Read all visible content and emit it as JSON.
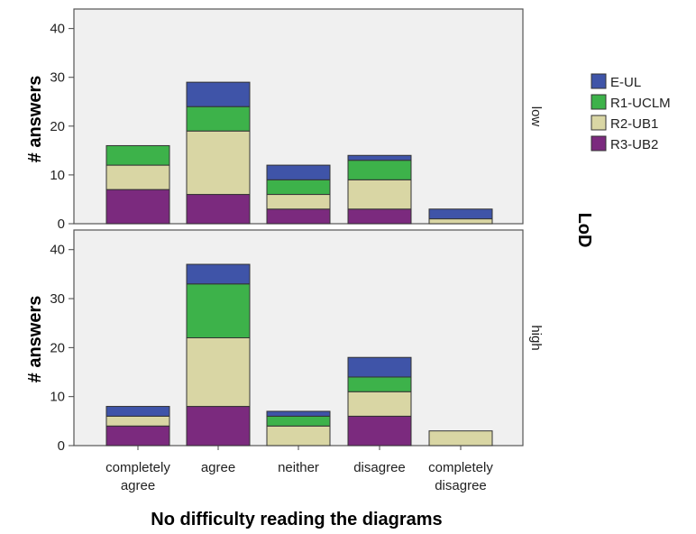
{
  "chart_data": {
    "type": "bar",
    "stacked": true,
    "xlabel": "No difficulty reading the diagrams",
    "ylabel": "# answers",
    "facet_title": "LoD",
    "categories": [
      "completely agree",
      "agree",
      "neither",
      "disagree",
      "completely disagree"
    ],
    "category_lines": [
      [
        "completely",
        "agree"
      ],
      [
        "agree"
      ],
      [
        "neither"
      ],
      [
        "disagree"
      ],
      [
        "completely",
        "disagree"
      ]
    ],
    "ylim": [
      0,
      44
    ],
    "yticks": [
      0,
      10,
      20,
      30,
      40
    ],
    "legend_position": "right",
    "series_order": [
      "R3-UB2",
      "R2-UB1",
      "R1-UCLM",
      "E-UL"
    ],
    "legend_order": [
      "E-UL",
      "R1-UCLM",
      "R2-UB1",
      "R3-UB2"
    ],
    "colors": {
      "E-UL": "#3f54a8",
      "R1-UCLM": "#3db24a",
      "R2-UB1": "#d9d6a4",
      "R3-UB2": "#7b2a7e"
    },
    "panels": [
      {
        "facet": "low",
        "series": [
          {
            "name": "R3-UB2",
            "values": [
              7,
              6,
              3,
              3,
              0
            ]
          },
          {
            "name": "R2-UB1",
            "values": [
              5,
              13,
              3,
              6,
              1
            ]
          },
          {
            "name": "R1-UCLM",
            "values": [
              4,
              5,
              3,
              4,
              0
            ]
          },
          {
            "name": "E-UL",
            "values": [
              0,
              5,
              3,
              1,
              2
            ]
          }
        ]
      },
      {
        "facet": "high",
        "series": [
          {
            "name": "R3-UB2",
            "values": [
              4,
              8,
              0,
              6,
              0
            ]
          },
          {
            "name": "R2-UB1",
            "values": [
              2,
              14,
              4,
              5,
              3
            ]
          },
          {
            "name": "R1-UCLM",
            "values": [
              0,
              11,
              2,
              3,
              0
            ]
          },
          {
            "name": "E-UL",
            "values": [
              2,
              4,
              1,
              4,
              0
            ]
          }
        ]
      }
    ]
  }
}
